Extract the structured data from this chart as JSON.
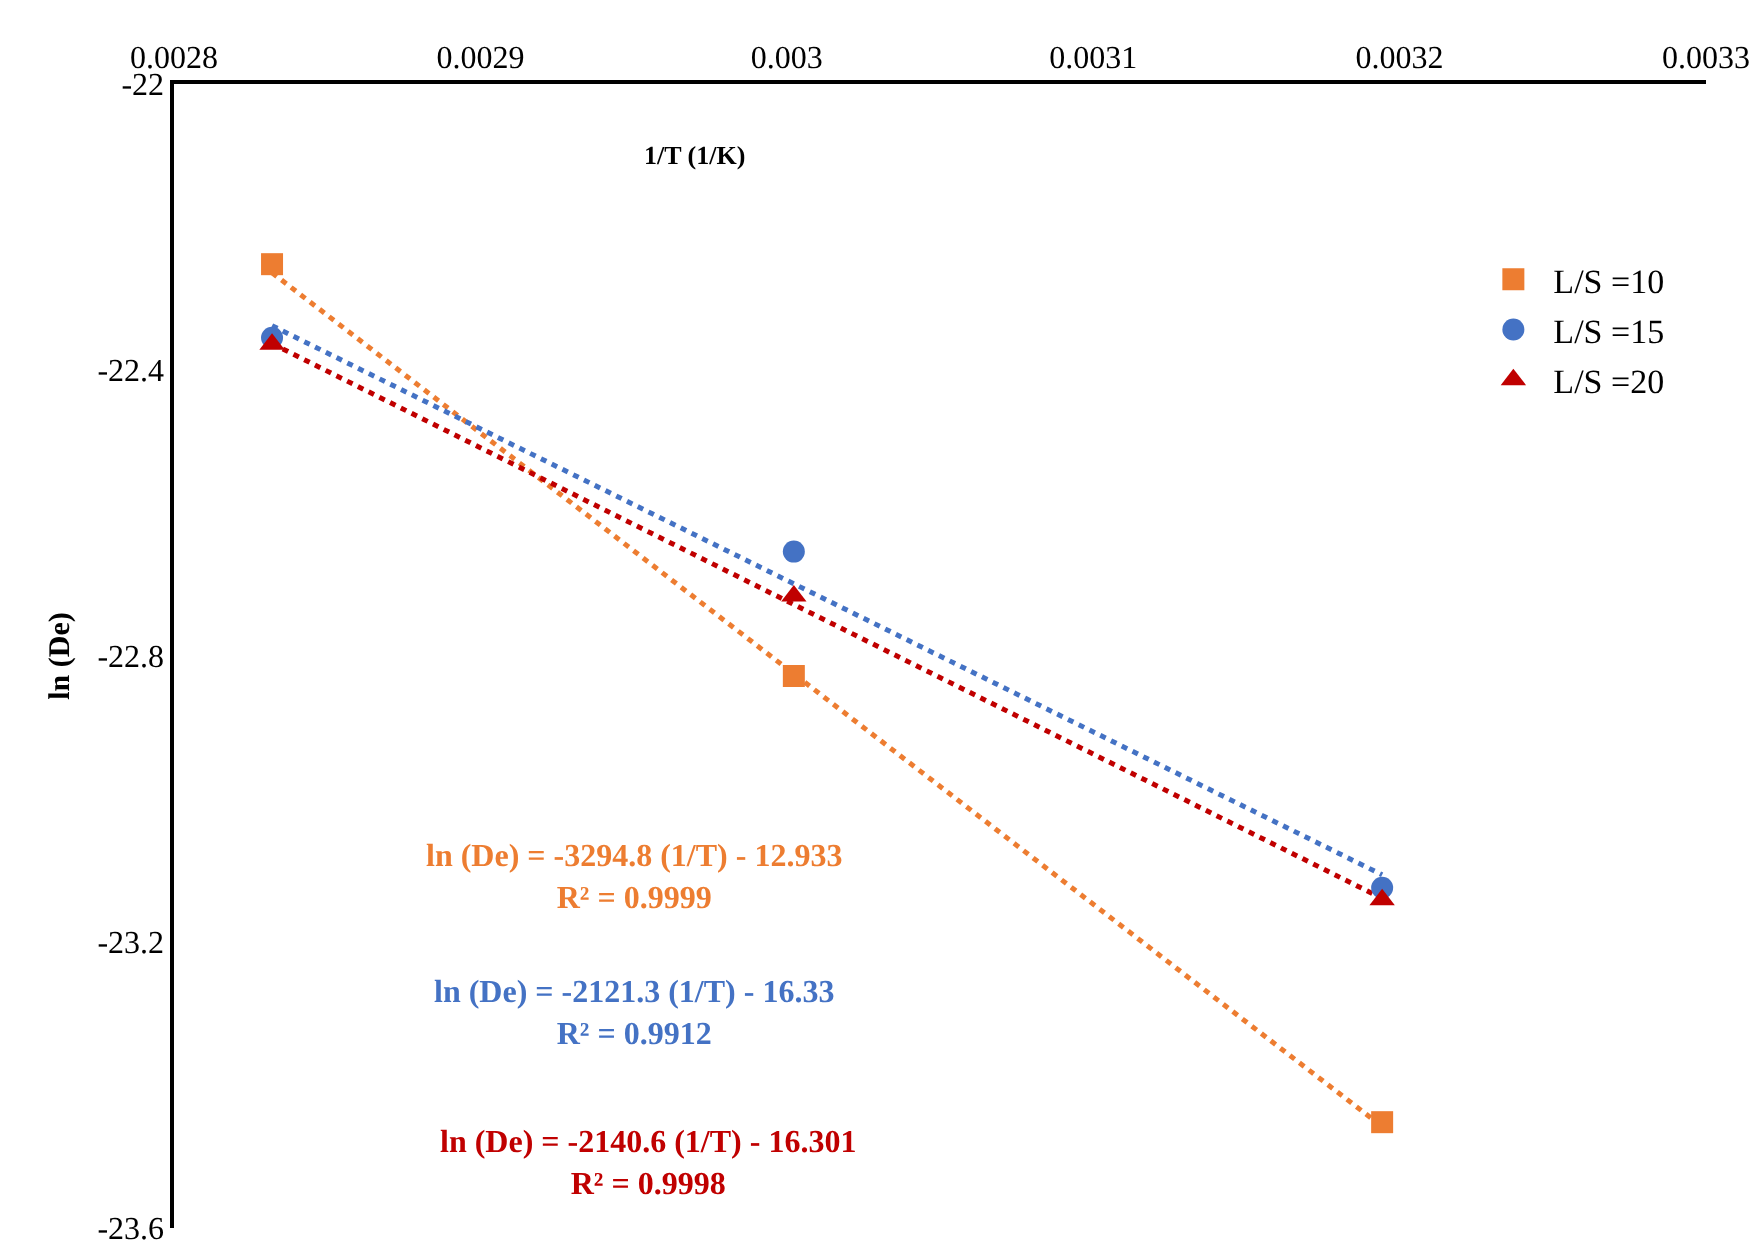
{
  "chart_data": {
    "type": "scatter",
    "xlabel": "1/T (1/K)",
    "ylabel": "ln (De)",
    "xlim": [
      0.0028,
      0.0033
    ],
    "xticks": [
      0.0028,
      0.0029,
      0.003,
      0.0031,
      0.0032,
      0.0033
    ],
    "ylim": [
      -23.6,
      -22
    ],
    "yticks": [
      -22,
      -22.4,
      -22.8,
      -23.2,
      -23.6
    ],
    "x": [
      0.002832,
      0.0030023,
      0.0031943
    ],
    "series": [
      {
        "name": "L/S =10",
        "color": "#ed7d31",
        "marker": "square",
        "values": [
          -22.252,
          -22.828,
          -23.452
        ]
      },
      {
        "name": "L/S =15",
        "color": "#4472c4",
        "marker": "circle",
        "values": [
          -22.355,
          -22.654,
          -23.124
        ]
      },
      {
        "name": "L/S =20",
        "color": "#c00000",
        "marker": "triangle",
        "values": [
          -22.364,
          -22.716,
          -23.141
        ]
      },
      {
        "type": "line",
        "line_style": "dotted",
        "color": "#ed7d31",
        "values": [
          -22.264,
          -22.825,
          -23.458
        ]
      },
      {
        "type": "line",
        "line_style": "dotted",
        "color": "#4472c4",
        "values": [
          -22.338,
          -22.699,
          -23.106
        ]
      },
      {
        "type": "line",
        "line_style": "dotted",
        "color": "#c00000",
        "values": [
          -22.363,
          -22.728,
          -23.139
        ]
      }
    ],
    "annotations": [
      "ln (De) = -3294.8 (1/T) - 12.933\nR² = 0.9999",
      "ln (De) = -2121.3 (1/T) - 16.33\nR² = 0.9912",
      "ln (De) = -2140.6 (1/T) - 16.301\nR² = 0.9998"
    ],
    "legend": "top right",
    "grid": false
  }
}
